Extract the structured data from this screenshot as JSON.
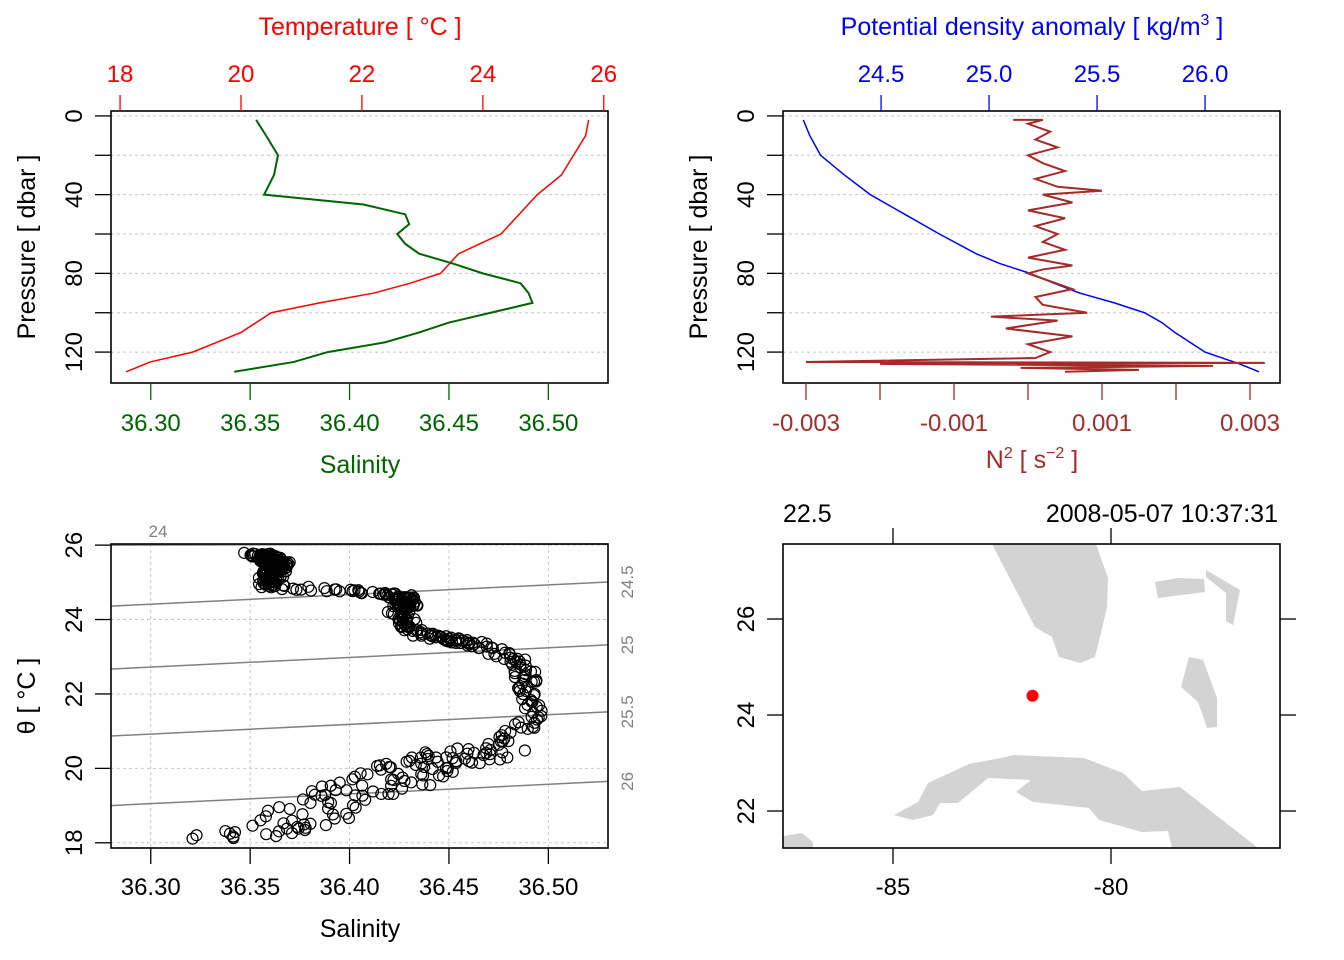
{
  "chart_data": [
    {
      "type": "line",
      "panel": "profile-temperature-salinity",
      "title": "Temperature [ °C ]",
      "xlabel_bottom": "Salinity",
      "ylabel": "Pressure [ dbar ]",
      "top_ticks": [
        "18",
        "20",
        "22",
        "24",
        "26"
      ],
      "bottom_ticks": [
        "36.30",
        "36.35",
        "36.40",
        "36.45",
        "36.50"
      ],
      "left_ticks": [
        "0",
        "40",
        "80",
        "120"
      ],
      "ylim": [
        135.7,
        -2.5
      ],
      "temp_lim": [
        17.85,
        26.07
      ],
      "sal_lim": [
        36.28,
        36.53
      ],
      "pressure": [
        2,
        10,
        20,
        30,
        40,
        45,
        50,
        55,
        60,
        65,
        70,
        75,
        80,
        85,
        90,
        95,
        100,
        105,
        110,
        115,
        120,
        125,
        130
      ],
      "series": [
        {
          "name": "Temperature",
          "color": "#ff0000",
          "values": [
            25.75,
            25.7,
            25.5,
            25.3,
            24.9,
            24.75,
            24.6,
            24.45,
            24.3,
            23.95,
            23.6,
            23.45,
            23.3,
            22.8,
            22.2,
            21.3,
            20.5,
            20.25,
            20.0,
            19.6,
            19.2,
            18.5,
            18.1
          ]
        },
        {
          "name": "Salinity",
          "color": "#006400",
          "values": [
            36.353,
            36.358,
            36.364,
            36.362,
            36.357,
            36.407,
            36.428,
            36.43,
            36.424,
            36.428,
            36.435,
            36.452,
            36.467,
            36.486,
            36.49,
            36.492,
            36.471,
            36.45,
            36.435,
            36.418,
            36.389,
            36.372,
            36.342
          ]
        }
      ]
    },
    {
      "type": "line",
      "panel": "profile-density-n2",
      "title": "Potential density anomaly [ kg/m³ ]",
      "title_main": "Potential density anomaly [ kg/m",
      "title_sup": "3",
      "title_end": " ]",
      "xlabel_main": "N",
      "xlabel_sup1": "2",
      "xlabel_mid": " [ s",
      "xlabel_sup2": "−2",
      "xlabel_end": " ]",
      "ylabel": "Pressure [ dbar ]",
      "top_ticks": [
        "24.5",
        "25.0",
        "25.5",
        "26.0"
      ],
      "bottom_ticks": [
        "-0.003",
        "-0.001",
        "0.001",
        "0.003"
      ],
      "left_ticks": [
        "0",
        "40",
        "80",
        "120"
      ],
      "sigma_lim": [
        24.046,
        26.347
      ],
      "n2_lim": [
        -0.00331,
        0.00372
      ],
      "sigma": {
        "color": "#0000ff",
        "pressure": [
          2,
          10,
          20,
          30,
          40,
          50,
          60,
          70,
          75,
          80,
          85,
          90,
          95,
          100,
          105,
          110,
          115,
          120,
          126,
          130
        ],
        "values": [
          24.14,
          24.17,
          24.22,
          24.33,
          24.45,
          24.61,
          24.77,
          24.94,
          25.05,
          25.19,
          25.3,
          25.42,
          25.58,
          25.72,
          25.8,
          25.86,
          25.93,
          26.0,
          26.16,
          26.25
        ]
      },
      "n2": {
        "color": "#a52a2a",
        "pressure": [
          2,
          2,
          4,
          8,
          12,
          16,
          20,
          24,
          28,
          32,
          36,
          38,
          40,
          44,
          48,
          52,
          56,
          60,
          64,
          68,
          72,
          76,
          78,
          80,
          84,
          88,
          92,
          96,
          100,
          102,
          104,
          108,
          112,
          116,
          120,
          123,
          125,
          125.5,
          126,
          127,
          128,
          129,
          130
        ],
        "values": [
          -0.0002,
          0.0002,
          0.0,
          0.0003,
          0.0001,
          0.0004,
          0.0,
          0.0002,
          0.0005,
          0.0001,
          0.0004,
          0.001,
          0.0002,
          0.0006,
          0.0,
          0.0005,
          0.0001,
          0.0004,
          0.0002,
          0.0005,
          0.0,
          0.0006,
          0.0002,
          0.0,
          0.0003,
          0.0006,
          0.0001,
          0.0002,
          0.0008,
          -0.0005,
          0.0004,
          -0.0003,
          0.0006,
          0.0,
          0.0003,
          0.0001,
          -0.003,
          0.0032,
          -0.002,
          0.0025,
          -0.0001,
          0.0015,
          0.0005
        ]
      }
    },
    {
      "type": "scatter",
      "panel": "ts-diagram",
      "xlabel": "Salinity",
      "ylabel": "θ [ °C ]",
      "bottom_ticks": [
        "36.30",
        "36.35",
        "36.40",
        "36.45",
        "36.50"
      ],
      "left_ticks": [
        "18",
        "20",
        "22",
        "24",
        "26"
      ],
      "xlim": [
        36.28,
        36.53
      ],
      "ylim": [
        17.86,
        26.03
      ],
      "isopycnals": [
        {
          "label": "24",
          "theta_at_smin": 26.0
        },
        {
          "label": "24.5",
          "theta_at_smin": 24.36
        },
        {
          "label": "25",
          "theta_at_smin": 22.67
        },
        {
          "label": "25.5",
          "theta_at_smin": 20.87
        },
        {
          "label": "26",
          "theta_at_smin": 19.0
        }
      ],
      "isopycnal_slope": 2.6,
      "point_source": "profile-temperature-salinity"
    },
    {
      "type": "map",
      "panel": "station-map",
      "top_left_label": "22.5",
      "top_right_label": "2008-05-07 10:37:31",
      "bottom_ticks": [
        "-85",
        "-80"
      ],
      "left_ticks": [
        "22",
        "24",
        "26"
      ],
      "station": {
        "lon": -81.8,
        "lat": 24.4,
        "color": "#ff0000"
      },
      "land_color": "#d3d3d3"
    }
  ]
}
